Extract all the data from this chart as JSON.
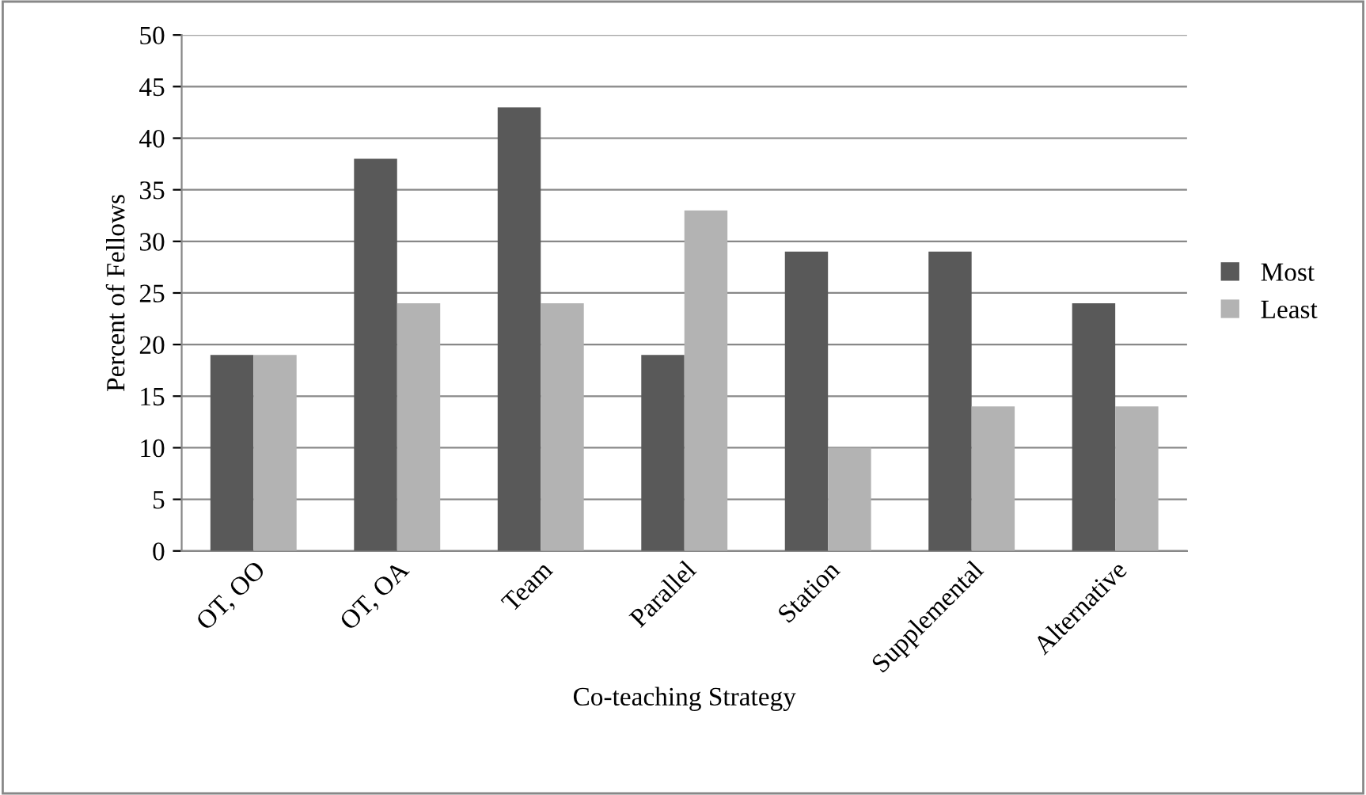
{
  "chart_data": {
    "type": "bar",
    "xlabel": "Co-teaching Strategy",
    "ylabel": "Percent of Fellows",
    "categories": [
      "OT, OO",
      "OT, OA",
      "Team",
      "Parallel",
      "Station",
      "Supplemental",
      "Alternative"
    ],
    "series": [
      {
        "name": "Most",
        "color": "#595959",
        "values": [
          19,
          38,
          43,
          19,
          29,
          29,
          24
        ]
      },
      {
        "name": "Least",
        "color": "#b3b3b3",
        "values": [
          19,
          24,
          24,
          33,
          10,
          14,
          14
        ]
      }
    ],
    "ylim": [
      0,
      50
    ],
    "yticks": [
      0,
      5,
      10,
      15,
      20,
      25,
      30,
      35,
      40,
      45,
      50
    ],
    "grid": "y",
    "legend": "right"
  }
}
